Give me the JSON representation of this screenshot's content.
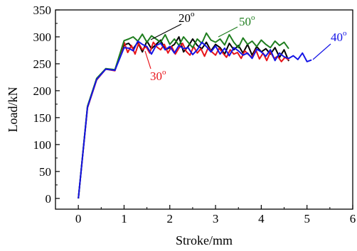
{
  "chart_data": {
    "type": "line",
    "title": "",
    "xlabel": "Stroke/mm",
    "ylabel": "Load/kN",
    "xlim": [
      -0.5,
      6
    ],
    "ylim": [
      -20,
      350
    ],
    "x_ticks": [
      0,
      1,
      2,
      3,
      4,
      5,
      6
    ],
    "y_ticks": [
      0,
      50,
      100,
      150,
      200,
      250,
      300,
      350
    ],
    "grid": false,
    "series": [
      {
        "name": "20°",
        "annotation": {
          "base": "20",
          "sup": "o",
          "color": "#000000"
        },
        "color": "#000000",
        "x": [
          0,
          0.2,
          0.4,
          0.6,
          0.8,
          1.0,
          1.1,
          1.2,
          1.3,
          1.4,
          1.5,
          1.6,
          1.7,
          1.8,
          1.9,
          2.0,
          2.1,
          2.2,
          2.3,
          2.4,
          2.5,
          2.6,
          2.7,
          2.8,
          2.9,
          3.0,
          3.1,
          3.2,
          3.3,
          3.4,
          3.5,
          3.6,
          3.7,
          3.8,
          3.9,
          4.0,
          4.1,
          4.2,
          4.3,
          4.4,
          4.5,
          4.6
        ],
        "y": [
          0,
          170,
          222,
          240,
          238,
          285,
          288,
          278,
          290,
          272,
          292,
          278,
          286,
          294,
          276,
          280,
          286,
          300,
          272,
          282,
          296,
          284,
          278,
          290,
          274,
          286,
          280,
          268,
          288,
          276,
          284,
          270,
          286,
          266,
          282,
          272,
          278,
          268,
          280,
          262,
          276,
          255
        ]
      },
      {
        "name": "30°",
        "annotation": {
          "base": "30",
          "sup": "o",
          "color": "#e8141a"
        },
        "color": "#e8141a",
        "x": [
          0,
          0.2,
          0.4,
          0.6,
          0.8,
          1.0,
          1.08,
          1.16,
          1.24,
          1.32,
          1.4,
          1.48,
          1.56,
          1.64,
          1.72,
          1.8,
          1.88,
          1.96,
          2.04,
          2.12,
          2.2,
          2.28,
          2.36,
          2.44,
          2.52,
          2.6,
          2.68,
          2.76,
          2.84,
          2.92,
          3.0,
          3.08,
          3.16,
          3.24,
          3.32,
          3.4,
          3.48,
          3.56,
          3.64,
          3.72,
          3.8,
          3.88,
          3.96,
          4.04,
          4.12,
          4.2,
          4.28,
          4.36,
          4.44,
          4.52,
          4.6
        ],
        "y": [
          0,
          168,
          220,
          240,
          237,
          290,
          271,
          284,
          268,
          288,
          276,
          282,
          270,
          290,
          281,
          276,
          286,
          270,
          282,
          268,
          279,
          288,
          273,
          266,
          282,
          270,
          278,
          264,
          280,
          272,
          266,
          279,
          270,
          262,
          276,
          268,
          271,
          260,
          274,
          267,
          262,
          276,
          259,
          270,
          256,
          272,
          260,
          264,
          254,
          262,
          257
        ]
      },
      {
        "name": "50°",
        "annotation": {
          "base": "50",
          "sup": "o",
          "color": "#1e7d1e"
        },
        "color": "#1e7d1e",
        "x": [
          0,
          0.2,
          0.4,
          0.6,
          0.8,
          1.0,
          1.1,
          1.2,
          1.3,
          1.4,
          1.5,
          1.6,
          1.7,
          1.8,
          1.9,
          2.0,
          2.1,
          2.2,
          2.3,
          2.4,
          2.5,
          2.6,
          2.7,
          2.8,
          2.9,
          3.0,
          3.1,
          3.2,
          3.3,
          3.4,
          3.5,
          3.6,
          3.7,
          3.8,
          3.9,
          4.0,
          4.1,
          4.2,
          4.3,
          4.4,
          4.5,
          4.6
        ],
        "y": [
          0,
          171,
          223,
          241,
          239,
          293,
          296,
          300,
          292,
          305,
          290,
          302,
          296,
          290,
          304,
          286,
          296,
          284,
          300,
          290,
          280,
          296,
          288,
          307,
          294,
          290,
          296,
          285,
          304,
          290,
          280,
          298,
          286,
          292,
          282,
          294,
          286,
          280,
          292,
          284,
          290,
          278
        ]
      },
      {
        "name": "40°",
        "annotation": {
          "base": "40",
          "sup": "o",
          "color": "#1414e6"
        },
        "color": "#1414e6",
        "x": [
          0,
          0.2,
          0.4,
          0.6,
          0.8,
          1.0,
          1.1,
          1.2,
          1.3,
          1.4,
          1.5,
          1.6,
          1.7,
          1.8,
          1.9,
          2.0,
          2.1,
          2.2,
          2.3,
          2.4,
          2.5,
          2.6,
          2.7,
          2.8,
          2.9,
          3.0,
          3.1,
          3.2,
          3.3,
          3.4,
          3.5,
          3.6,
          3.7,
          3.8,
          3.9,
          4.0,
          4.1,
          4.2,
          4.3,
          4.4,
          4.5,
          4.6,
          4.7,
          4.8,
          4.9,
          5.0,
          5.1
        ],
        "y": [
          0,
          169,
          221,
          240,
          238,
          280,
          279,
          274,
          292,
          286,
          282,
          268,
          284,
          288,
          276,
          282,
          270,
          284,
          278,
          280,
          267,
          276,
          290,
          282,
          272,
          283,
          268,
          279,
          265,
          280,
          274,
          266,
          270,
          260,
          277,
          272,
          264,
          276,
          256,
          270,
          263,
          260,
          265,
          258,
          270,
          254,
          257
        ]
      }
    ]
  }
}
